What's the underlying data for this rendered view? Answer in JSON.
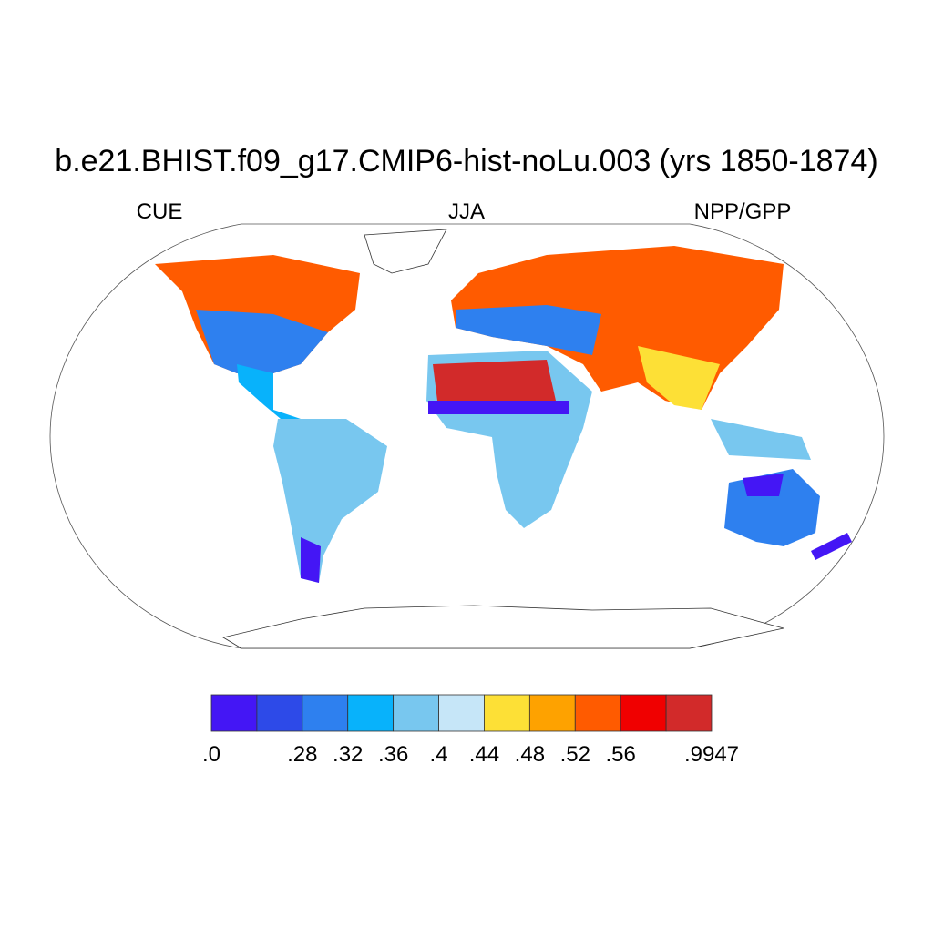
{
  "title": "b.e21.BHIST.f09_g17.CMIP6-hist-noLu.003 (yrs 1850-1874)",
  "left_label": "CUE",
  "center_label": "JJA",
  "right_label": "NPP/GPP",
  "colorbar": {
    "colors": [
      "#4416f5",
      "#2d4ae8",
      "#2e80ef",
      "#08b2fb",
      "#78c7ef",
      "#c6e6f8",
      "#fde036",
      "#fea200",
      "#ff5b00",
      "#f00000",
      "#d22a2a"
    ],
    "labels": [
      {
        "value": 0,
        "label": ".0"
      },
      null,
      {
        "value": 0.28,
        "label": ".28"
      },
      {
        "value": 0.32,
        "label": ".32"
      },
      {
        "value": 0.36,
        "label": ".36"
      },
      {
        "value": 0.4,
        "label": ".4"
      },
      {
        "value": 0.44,
        "label": ".44"
      },
      {
        "value": 0.48,
        "label": ".48"
      },
      {
        "value": 0.52,
        "label": ".52"
      },
      {
        "value": 0.56,
        "label": ".56"
      },
      null,
      {
        "value": 0.9947,
        "label": ".9947"
      }
    ]
  }
}
